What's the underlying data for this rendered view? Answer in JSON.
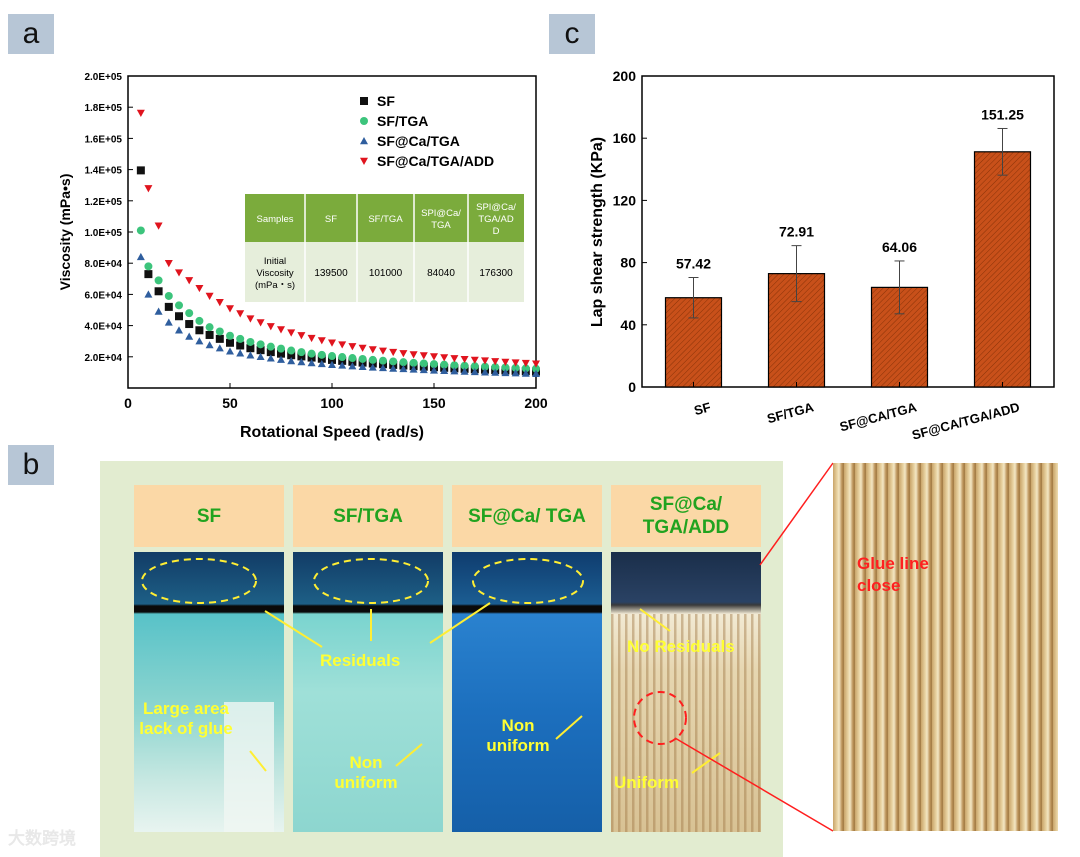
{
  "panels": {
    "a": "a",
    "b": "b",
    "c": "c"
  },
  "chart_data": [
    {
      "type": "scatter",
      "panel": "a",
      "xlabel": "Rotational Speed (rad/s)",
      "ylabel": "Viscosity (mPa•s)",
      "xlim": [
        0,
        200
      ],
      "ylim": [
        0,
        200000
      ],
      "x_ticks": [
        "0",
        "50",
        "100",
        "150",
        "200"
      ],
      "y_ticks": [
        "2.0E+04",
        "4.0E+04",
        "6.0E+04",
        "8.0E+04",
        "1.0E+05",
        "1.2E+05",
        "1.4E+05",
        "1.6E+05",
        "1.8E+05",
        "2.0E+05"
      ],
      "legend_position": "top-right",
      "series": [
        {
          "name": "SF",
          "marker": "square",
          "color": "#111111",
          "x": [
            6.3,
            10,
            15,
            20,
            25,
            30,
            35,
            40,
            50,
            60,
            70,
            80,
            90,
            100,
            110,
            120,
            130,
            140,
            150,
            160,
            170,
            180,
            190,
            200
          ],
          "y": [
            139500,
            73000,
            62000,
            52000,
            46000,
            41000,
            37000,
            34000,
            29000,
            25500,
            23000,
            21000,
            19500,
            18000,
            16800,
            15700,
            14800,
            14000,
            13300,
            12600,
            12000,
            11500,
            11000,
            10500
          ]
        },
        {
          "name": "SF/TGA",
          "marker": "circle",
          "color": "#3cc47c",
          "x": [
            6.3,
            10,
            15,
            20,
            25,
            30,
            35,
            40,
            50,
            60,
            70,
            80,
            90,
            100,
            110,
            120,
            130,
            140,
            150,
            160,
            170,
            180,
            190,
            200
          ],
          "y": [
            101000,
            78000,
            69000,
            59000,
            53000,
            48000,
            43000,
            39000,
            33500,
            29500,
            26500,
            24000,
            22000,
            20500,
            19200,
            18000,
            17000,
            16100,
            15300,
            14600,
            14000,
            13400,
            12900,
            12400
          ]
        },
        {
          "name": "SF@Ca/TGA",
          "marker": "triangle",
          "color": "#2f5e9e",
          "x": [
            6.3,
            10,
            15,
            20,
            25,
            30,
            35,
            40,
            50,
            60,
            70,
            80,
            90,
            100,
            110,
            120,
            130,
            140,
            150,
            160,
            170,
            180,
            190,
            200
          ],
          "y": [
            84040,
            60000,
            49000,
            42000,
            37000,
            33000,
            30000,
            27500,
            23500,
            21000,
            19000,
            17300,
            16000,
            14900,
            14000,
            13200,
            12500,
            11900,
            11300,
            10800,
            10300,
            9900,
            9500,
            9100
          ]
        },
        {
          "name": "SF@Ca/TGA/ADD",
          "marker": "triangle-down",
          "color": "#e0141e",
          "x": [
            6.3,
            10,
            15,
            20,
            25,
            30,
            35,
            40,
            50,
            60,
            70,
            80,
            90,
            100,
            110,
            120,
            130,
            140,
            150,
            160,
            170,
            180,
            190,
            200
          ],
          "y": [
            176300,
            128000,
            104000,
            80000,
            74000,
            69000,
            64000,
            59000,
            51000,
            44500,
            39500,
            35500,
            32000,
            29000,
            26700,
            24700,
            23000,
            21500,
            20200,
            19000,
            18000,
            17100,
            16300,
            15600
          ]
        }
      ],
      "inset_table": {
        "headers": [
          "Samples",
          "SF",
          "SF/TGA",
          "SPI@Ca/ TGA",
          "SPI@Ca/ TGA/AD D"
        ],
        "row_label": "Initial Viscosity (mPa・s)",
        "values": [
          "139500",
          "101000",
          "84040",
          "176300"
        ]
      }
    },
    {
      "type": "bar",
      "panel": "c",
      "ylabel": "Lap shear strength (KPa)",
      "ylim": [
        0,
        200
      ],
      "y_ticks": [
        "0",
        "40",
        "80",
        "120",
        "160",
        "200"
      ],
      "categories": [
        "SF",
        "SF/TGA",
        "SF@CA/TGA",
        "SF@CA/TGA/ADD"
      ],
      "values": [
        57.42,
        72.91,
        64.06,
        151.25
      ],
      "value_labels": [
        "57.42",
        "72.91",
        "64.06",
        "151.25"
      ],
      "errors": [
        13,
        18,
        17,
        15
      ],
      "bar_color": "#c8501a"
    }
  ],
  "photos": {
    "columns": [
      {
        "title": "SF",
        "style": "light"
      },
      {
        "title": "SF/TGA",
        "style": "light"
      },
      {
        "title": "SF@Ca/ TGA",
        "style": "blue"
      },
      {
        "title": "SF@Ca/ TGA/ADD",
        "style": "wood"
      }
    ],
    "annotations": {
      "residuals": "Residuals",
      "large_area": "Large area lack of glue",
      "non_uniform_1": "Non uniform",
      "non_uniform_2": "Non uniform",
      "no_residuals": "No Residuals",
      "uniform": "Uniform"
    },
    "closeup_label": "Glue line close"
  },
  "watermark": "大数跨境",
  "colors": {
    "photo_bg": "#e2ecd0",
    "photo_head": "#fbd8a6",
    "annotation": "#ffff33",
    "glue_label": "#ff2020"
  }
}
